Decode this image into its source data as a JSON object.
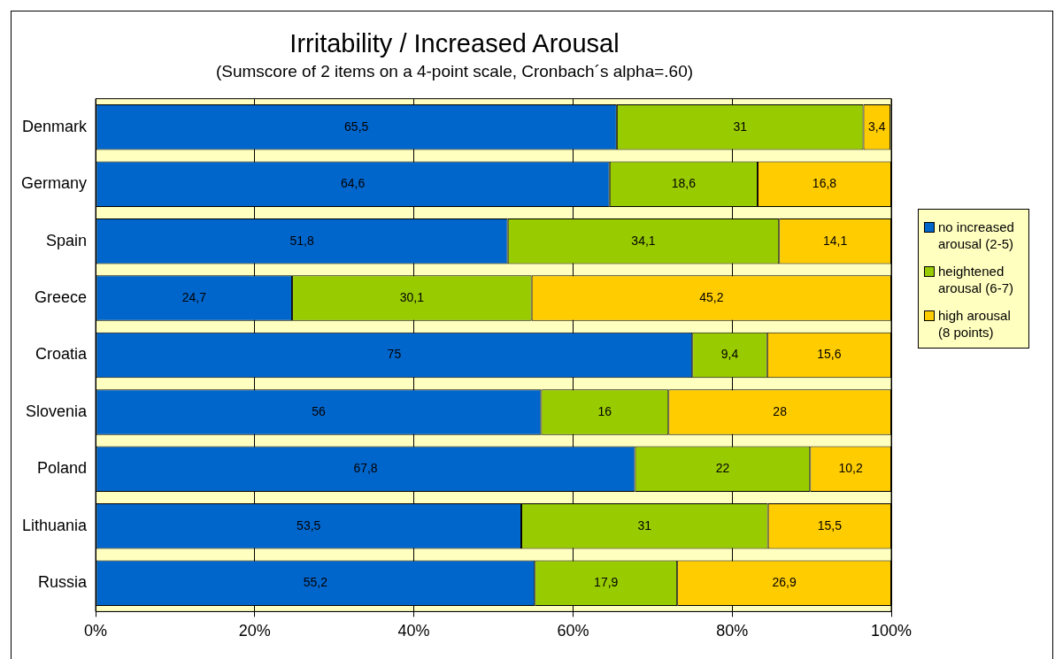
{
  "chart_data": {
    "type": "bar",
    "orientation": "horizontal",
    "stacked": true,
    "title": "Irritability / Increased Arousal",
    "subtitle": "(Sumscore of 2 items on a 4-point scale, Cronbach´s alpha=.60)",
    "categories": [
      "Denmark",
      "Germany",
      "Spain",
      "Greece",
      "Croatia",
      "Slovenia",
      "Poland",
      "Lithuania",
      "Russia"
    ],
    "series": [
      {
        "name": "no increased arousal (2-5)",
        "color": "#0066cc",
        "values": [
          65.5,
          64.6,
          51.8,
          24.7,
          75,
          56,
          67.8,
          53.5,
          55.2
        ],
        "value_labels": [
          "65,5",
          "64,6",
          "51,8",
          "24,7",
          "75",
          "56",
          "67,8",
          "53,5",
          "55,2"
        ]
      },
      {
        "name": "heightened arousal (6-7)",
        "color": "#99cc00",
        "values": [
          31,
          18.6,
          34.1,
          30.1,
          9.4,
          16,
          22,
          31,
          17.9
        ],
        "value_labels": [
          "31",
          "18,6",
          "34,1",
          "30,1",
          "9,4",
          "16",
          "22",
          "31",
          "17,9"
        ]
      },
      {
        "name": "high arousal (8 points)",
        "color": "#ffcc00",
        "values": [
          3.4,
          16.8,
          14.1,
          45.2,
          15.6,
          28,
          10.2,
          15.5,
          26.9
        ],
        "value_labels": [
          "3,4",
          "16,8",
          "14,1",
          "45,2",
          "15,6",
          "28",
          "10,2",
          "15,5",
          "26,9"
        ]
      }
    ],
    "xlim": [
      0,
      100
    ],
    "xticks": [
      {
        "value": 0,
        "label": "0%"
      },
      {
        "value": 20,
        "label": "20%"
      },
      {
        "value": 40,
        "label": "40%"
      },
      {
        "value": 60,
        "label": "60%"
      },
      {
        "value": 80,
        "label": "80%"
      },
      {
        "value": 100,
        "label": "100%"
      }
    ],
    "bands": [
      {
        "axis": "x",
        "from": 0,
        "to": 100,
        "color": "#ffffc0"
      }
    ],
    "grid": "x",
    "legend": "right"
  }
}
